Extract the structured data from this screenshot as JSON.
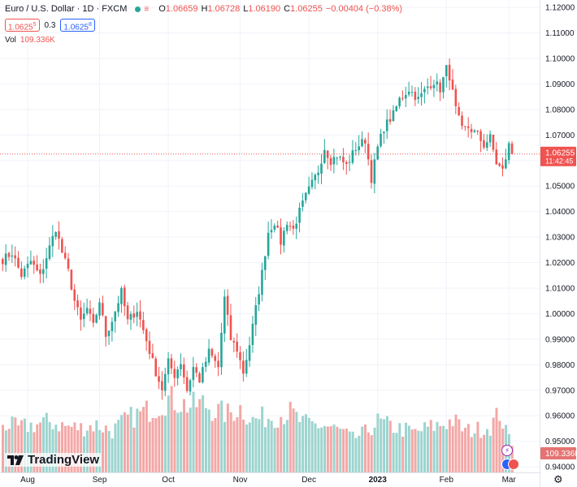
{
  "header": {
    "symbol": "Euro / U.S. Dollar · 1D · FXCM",
    "market_flag": "≡",
    "open_label": "O",
    "open": "1.06659",
    "high_label": "H",
    "high": "1.06728",
    "low_label": "L",
    "low": "1.06190",
    "close_label": "C",
    "close": "1.06255",
    "change": "−0.00404 (−0.38%)",
    "sell_price": "1.0625",
    "sell_pip": "5",
    "spread": "0.3",
    "buy_price": "1.0625",
    "buy_pip": "8"
  },
  "volume": {
    "label": "Vol",
    "value": "109.336K"
  },
  "branding": {
    "name": "TradingView"
  },
  "tools": {
    "settings_glyph": "⚙",
    "alert_glyph": "⚡"
  },
  "colors": {
    "up": "#26a69a",
    "down": "#ef5350",
    "vol_up": "#9dd4cf",
    "vol_down": "#f3a8a6",
    "grid": "#f0f3fa",
    "label": "#131722"
  },
  "chart_data": {
    "type": "candlestick",
    "title": "Euro / U.S. Dollar · 1D · FXCM",
    "y_ticks": [
      "1.12000",
      "1.11000",
      "1.10000",
      "1.09000",
      "1.08000",
      "1.07000",
      "1.06000",
      "1.05000",
      "1.04000",
      "1.03000",
      "1.02000",
      "1.01000",
      "1.00000",
      "0.99000",
      "0.98000",
      "0.97000",
      "0.96000",
      "0.95000",
      "0.94000"
    ],
    "ylim": [
      0.9394,
      1.1213
    ],
    "x_ticks": [
      {
        "label": "Aug",
        "index": 8,
        "bold": false
      },
      {
        "label": "Sep",
        "index": 31,
        "bold": false
      },
      {
        "label": "Oct",
        "index": 53,
        "bold": false
      },
      {
        "label": "Nov",
        "index": 76,
        "bold": false
      },
      {
        "label": "Dec",
        "index": 98,
        "bold": false
      },
      {
        "label": "2023",
        "index": 120,
        "bold": true
      },
      {
        "label": "Feb",
        "index": 142,
        "bold": false
      },
      {
        "label": "Mar",
        "index": 162,
        "bold": false
      }
    ],
    "last_price": {
      "value": 1.06255,
      "label": "1.06255",
      "countdown": "11:42:45"
    },
    "volume_badge": "109.336K",
    "keypoints": [
      [
        0,
        1.0212
      ],
      [
        3,
        1.0238
      ],
      [
        6,
        1.015
      ],
      [
        9,
        1.0205
      ],
      [
        12,
        1.0145
      ],
      [
        15,
        1.026
      ],
      [
        17,
        1.0335
      ],
      [
        19,
        1.024
      ],
      [
        21,
        1.0165
      ],
      [
        23,
        1.005
      ],
      [
        25,
        0.997
      ],
      [
        27,
        1.002
      ],
      [
        29,
        0.995
      ],
      [
        31,
        1.005
      ],
      [
        33,
        0.9915
      ],
      [
        35,
        0.9975
      ],
      [
        38,
        1.0085
      ],
      [
        40,
        0.997
      ],
      [
        43,
        1.0015
      ],
      [
        46,
        0.9895
      ],
      [
        49,
        0.977
      ],
      [
        51,
        0.9705
      ],
      [
        53,
        0.981
      ],
      [
        55,
        0.976
      ],
      [
        57,
        0.981
      ],
      [
        59,
        0.97
      ],
      [
        61,
        0.979
      ],
      [
        63,
        0.974
      ],
      [
        66,
        0.985
      ],
      [
        69,
        0.979
      ],
      [
        71,
        1.006
      ],
      [
        73,
        0.99
      ],
      [
        75,
        0.986
      ],
      [
        77,
        0.977
      ],
      [
        79,
        0.988
      ],
      [
        81,
        1.002
      ],
      [
        83,
        1.016
      ],
      [
        85,
        1.032
      ],
      [
        87,
        1.036
      ],
      [
        89,
        1.028
      ],
      [
        91,
        1.036
      ],
      [
        93,
        1.033
      ],
      [
        95,
        1.04
      ],
      [
        97,
        1.046
      ],
      [
        99,
        1.051
      ],
      [
        101,
        1.056
      ],
      [
        103,
        1.065
      ],
      [
        105,
        1.06
      ],
      [
        107,
        1.062
      ],
      [
        110,
        1.058
      ],
      [
        113,
        1.065
      ],
      [
        116,
        1.068
      ],
      [
        118,
        1.053
      ],
      [
        120,
        1.065
      ],
      [
        122,
        1.073
      ],
      [
        125,
        1.078
      ],
      [
        127,
        1.084
      ],
      [
        130,
        1.088
      ],
      [
        133,
        1.084
      ],
      [
        136,
        1.089
      ],
      [
        138,
        1.091
      ],
      [
        140,
        1.088
      ],
      [
        142,
        1.096
      ],
      [
        143,
        1.093
      ],
      [
        145,
        1.08
      ],
      [
        147,
        1.072
      ],
      [
        149,
        1.073
      ],
      [
        152,
        1.07
      ],
      [
        154,
        1.066
      ],
      [
        156,
        1.069
      ],
      [
        158,
        1.059
      ],
      [
        160,
        1.056
      ],
      [
        162,
        1.066
      ],
      [
        163,
        1.0626
      ]
    ],
    "vol_keypoints": [
      [
        0,
        64
      ],
      [
        5,
        58
      ],
      [
        10,
        62
      ],
      [
        15,
        66
      ],
      [
        20,
        60
      ],
      [
        25,
        58
      ],
      [
        30,
        62
      ],
      [
        35,
        54
      ],
      [
        40,
        70
      ],
      [
        45,
        78
      ],
      [
        50,
        88
      ],
      [
        53,
        96
      ],
      [
        56,
        92
      ],
      [
        60,
        86
      ],
      [
        64,
        90
      ],
      [
        68,
        80
      ],
      [
        72,
        76
      ],
      [
        76,
        84
      ],
      [
        80,
        68
      ],
      [
        84,
        72
      ],
      [
        88,
        74
      ],
      [
        92,
        78
      ],
      [
        96,
        64
      ],
      [
        100,
        62
      ],
      [
        104,
        60
      ],
      [
        108,
        54
      ],
      [
        112,
        44
      ],
      [
        116,
        52
      ],
      [
        120,
        66
      ],
      [
        124,
        60
      ],
      [
        128,
        56
      ],
      [
        132,
        52
      ],
      [
        136,
        58
      ],
      [
        140,
        62
      ],
      [
        144,
        68
      ],
      [
        148,
        54
      ],
      [
        152,
        56
      ],
      [
        156,
        60
      ],
      [
        159,
        78
      ],
      [
        161,
        52
      ],
      [
        163,
        40
      ]
    ],
    "vol_max": 110
  }
}
